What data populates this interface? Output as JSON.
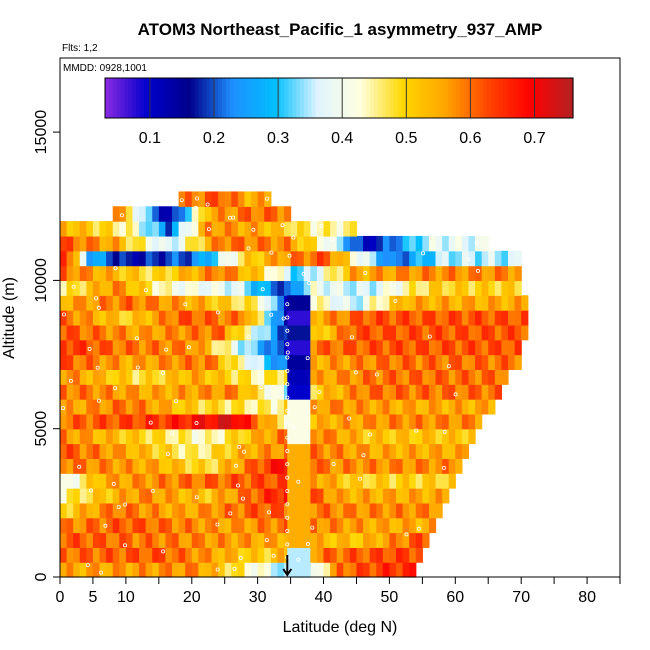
{
  "chart_data": {
    "type": "heatmap",
    "title": "ATOM3 Northeast_Pacific_1 asymmetry_937_AMP",
    "flights_label": "Flts: 1,2",
    "dates_label": "MMDD: 0928,1001",
    "xlabel": "Latitude (deg N)",
    "ylabel": "Altitude (m)",
    "xlim": [
      0,
      85
    ],
    "ylim": [
      0,
      17500
    ],
    "x_ticks": [
      0,
      5,
      10,
      20,
      30,
      40,
      50,
      60,
      70,
      80
    ],
    "x_minor_ticks": [
      15,
      25,
      35,
      45,
      55,
      65,
      75,
      85
    ],
    "y_ticks": [
      0,
      5000,
      10000,
      15000
    ],
    "colorbar": {
      "min": 0.03,
      "max": 0.76,
      "ticks": [
        0.1,
        0.2,
        0.3,
        0.4,
        0.5,
        0.6,
        0.7
      ],
      "colors": [
        "#8a2be2",
        "#0000cd",
        "#00008b",
        "#1e90ff",
        "#00bfff",
        "#e0f4ff",
        "#ffffe0",
        "#ffd700",
        "#ffa500",
        "#ff4500",
        "#ff0000",
        "#b22222"
      ]
    },
    "profile_band_lat": [
      34.5,
      38
    ],
    "arrow_lat": 34.5,
    "layers": [
      {
        "alt": 250,
        "lat": [
          0,
          54
        ],
        "seg": [
          [
            0,
            0.55
          ],
          [
            20,
            0.58
          ],
          [
            32,
            0.38
          ],
          [
            36,
            0.25
          ],
          [
            42,
            0.6
          ],
          [
            50,
            0.65
          ]
        ]
      },
      {
        "alt": 750,
        "lat": [
          0,
          55
        ],
        "seg": [
          [
            0,
            0.6
          ],
          [
            15,
            0.62
          ],
          [
            30,
            0.5
          ],
          [
            40,
            0.6
          ],
          [
            50,
            0.63
          ]
        ]
      },
      {
        "alt": 1250,
        "lat": [
          0,
          56
        ],
        "seg": [
          [
            0,
            0.62
          ],
          [
            20,
            0.58
          ],
          [
            34,
            0.55
          ],
          [
            45,
            0.52
          ],
          [
            54,
            0.62
          ]
        ]
      },
      {
        "alt": 1750,
        "lat": [
          0,
          57
        ],
        "seg": [
          [
            0,
            0.58
          ],
          [
            10,
            0.62
          ],
          [
            25,
            0.56
          ],
          [
            35,
            0.6
          ],
          [
            48,
            0.55
          ]
        ]
      },
      {
        "alt": 2250,
        "lat": [
          0,
          58
        ],
        "seg": [
          [
            0,
            0.5
          ],
          [
            8,
            0.6
          ],
          [
            18,
            0.55
          ],
          [
            30,
            0.62
          ],
          [
            44,
            0.58
          ]
        ]
      },
      {
        "alt": 2750,
        "lat": [
          0,
          59
        ],
        "seg": [
          [
            0,
            0.45
          ],
          [
            12,
            0.58
          ],
          [
            22,
            0.52
          ],
          [
            34,
            0.68
          ],
          [
            42,
            0.55
          ]
        ]
      },
      {
        "alt": 3250,
        "lat": [
          0,
          60
        ],
        "seg": [
          [
            0,
            0.38
          ],
          [
            6,
            0.55
          ],
          [
            20,
            0.6
          ],
          [
            34,
            0.63
          ],
          [
            44,
            0.5
          ]
        ]
      },
      {
        "alt": 3750,
        "lat": [
          0,
          61
        ],
        "seg": [
          [
            0,
            0.6
          ],
          [
            14,
            0.55
          ],
          [
            22,
            0.48
          ],
          [
            34,
            0.7
          ],
          [
            40,
            0.58
          ]
        ]
      },
      {
        "alt": 4250,
        "lat": [
          0,
          62
        ],
        "seg": [
          [
            0,
            0.62
          ],
          [
            10,
            0.55
          ],
          [
            20,
            0.45
          ],
          [
            28,
            0.55
          ],
          [
            36,
            0.6
          ],
          [
            48,
            0.55
          ]
        ]
      },
      {
        "alt": 4750,
        "lat": [
          0,
          63
        ],
        "seg": [
          [
            0,
            0.58
          ],
          [
            12,
            0.5
          ],
          [
            22,
            0.43
          ],
          [
            30,
            0.55
          ],
          [
            36,
            0.62
          ],
          [
            46,
            0.52
          ]
        ]
      },
      {
        "alt": 5250,
        "lat": [
          0,
          64
        ],
        "seg": [
          [
            0,
            0.6
          ],
          [
            16,
            0.65
          ],
          [
            26,
            0.72
          ],
          [
            34,
            0.45
          ],
          [
            40,
            0.55
          ],
          [
            50,
            0.58
          ]
        ]
      },
      {
        "alt": 5750,
        "lat": [
          0,
          66
        ],
        "seg": [
          [
            0,
            0.55
          ],
          [
            10,
            0.6
          ],
          [
            20,
            0.5
          ],
          [
            32,
            0.45
          ],
          [
            40,
            0.58
          ],
          [
            52,
            0.55
          ]
        ]
      },
      {
        "alt": 6250,
        "lat": [
          0,
          67
        ],
        "seg": [
          [
            0,
            0.6
          ],
          [
            14,
            0.55
          ],
          [
            26,
            0.58
          ],
          [
            34,
            0.35
          ],
          [
            38,
            0.5
          ],
          [
            46,
            0.6
          ]
        ]
      },
      {
        "alt": 6750,
        "lat": [
          0,
          68
        ],
        "seg": [
          [
            0,
            0.58
          ],
          [
            12,
            0.48
          ],
          [
            20,
            0.55
          ],
          [
            30,
            0.45
          ],
          [
            38,
            0.55
          ],
          [
            48,
            0.6
          ]
        ]
      },
      {
        "alt": 7250,
        "lat": [
          0,
          70
        ],
        "seg": [
          [
            0,
            0.62
          ],
          [
            10,
            0.55
          ],
          [
            22,
            0.6
          ],
          [
            34,
            0.2
          ],
          [
            38,
            0.55
          ],
          [
            50,
            0.6
          ]
        ]
      },
      {
        "alt": 7750,
        "lat": [
          0,
          70
        ],
        "seg": [
          [
            0,
            0.65
          ],
          [
            8,
            0.6
          ],
          [
            20,
            0.58
          ],
          [
            34,
            0.15
          ],
          [
            38,
            0.6
          ],
          [
            48,
            0.62
          ]
        ]
      },
      {
        "alt": 8250,
        "lat": [
          0,
          71
        ],
        "seg": [
          [
            0,
            0.62
          ],
          [
            12,
            0.56
          ],
          [
            24,
            0.6
          ],
          [
            34,
            0.18
          ],
          [
            38,
            0.48
          ],
          [
            44,
            0.62
          ]
        ]
      },
      {
        "alt": 8750,
        "lat": [
          0,
          71
        ],
        "seg": [
          [
            0,
            0.6
          ],
          [
            10,
            0.5
          ],
          [
            18,
            0.62
          ],
          [
            28,
            0.58
          ],
          [
            34,
            0.12
          ],
          [
            38,
            0.55
          ],
          [
            46,
            0.62
          ]
        ]
      },
      {
        "alt": 9250,
        "lat": [
          0,
          71
        ],
        "seg": [
          [
            0,
            0.55
          ],
          [
            10,
            0.6
          ],
          [
            20,
            0.55
          ],
          [
            30,
            0.45
          ],
          [
            34,
            0.15
          ],
          [
            38,
            0.45
          ],
          [
            44,
            0.35
          ],
          [
            52,
            0.55
          ]
        ]
      },
      {
        "alt": 9750,
        "lat": [
          0,
          70
        ],
        "seg": [
          [
            0,
            0.45
          ],
          [
            8,
            0.58
          ],
          [
            16,
            0.42
          ],
          [
            26,
            0.38
          ],
          [
            34,
            0.18
          ],
          [
            38,
            0.4
          ],
          [
            46,
            0.35
          ],
          [
            56,
            0.5
          ]
        ]
      },
      {
        "alt": 10250,
        "lat": [
          0,
          70
        ],
        "seg": [
          [
            0,
            0.6
          ],
          [
            6,
            0.55
          ],
          [
            14,
            0.48
          ],
          [
            24,
            0.6
          ],
          [
            30,
            0.5
          ],
          [
            36,
            0.3
          ],
          [
            44,
            0.55
          ],
          [
            54,
            0.58
          ]
        ]
      },
      {
        "alt": 10750,
        "lat": [
          0,
          70
        ],
        "seg": [
          [
            0,
            0.7
          ],
          [
            4,
            0.28
          ],
          [
            10,
            0.15
          ],
          [
            20,
            0.22
          ],
          [
            28,
            0.5
          ],
          [
            34,
            0.58
          ],
          [
            40,
            0.62
          ],
          [
            50,
            0.2
          ],
          [
            58,
            0.35
          ]
        ]
      },
      {
        "alt": 11250,
        "lat": [
          0,
          65
        ],
        "seg": [
          [
            0,
            0.62
          ],
          [
            8,
            0.55
          ],
          [
            16,
            0.35
          ],
          [
            24,
            0.6
          ],
          [
            34,
            0.58
          ],
          [
            40,
            0.42
          ],
          [
            46,
            0.12
          ],
          [
            56,
            0.38
          ]
        ]
      },
      {
        "alt": 11750,
        "lat": [
          0,
          45
        ],
        "seg": [
          [
            0,
            0.55
          ],
          [
            10,
            0.45
          ],
          [
            16,
            0.22
          ],
          [
            22,
            0.58
          ],
          [
            30,
            0.55
          ],
          [
            38,
            0.45
          ]
        ]
      },
      {
        "alt": 12250,
        "lat": [
          8,
          35
        ],
        "seg": [
          [
            8,
            0.6
          ],
          [
            12,
            0.35
          ],
          [
            16,
            0.1
          ],
          [
            22,
            0.55
          ],
          [
            28,
            0.6
          ]
        ]
      },
      {
        "alt": 12750,
        "lat": [
          18,
          32
        ],
        "seg": [
          [
            18,
            0.58
          ],
          [
            24,
            0.62
          ],
          [
            28,
            0.55
          ]
        ]
      }
    ]
  }
}
